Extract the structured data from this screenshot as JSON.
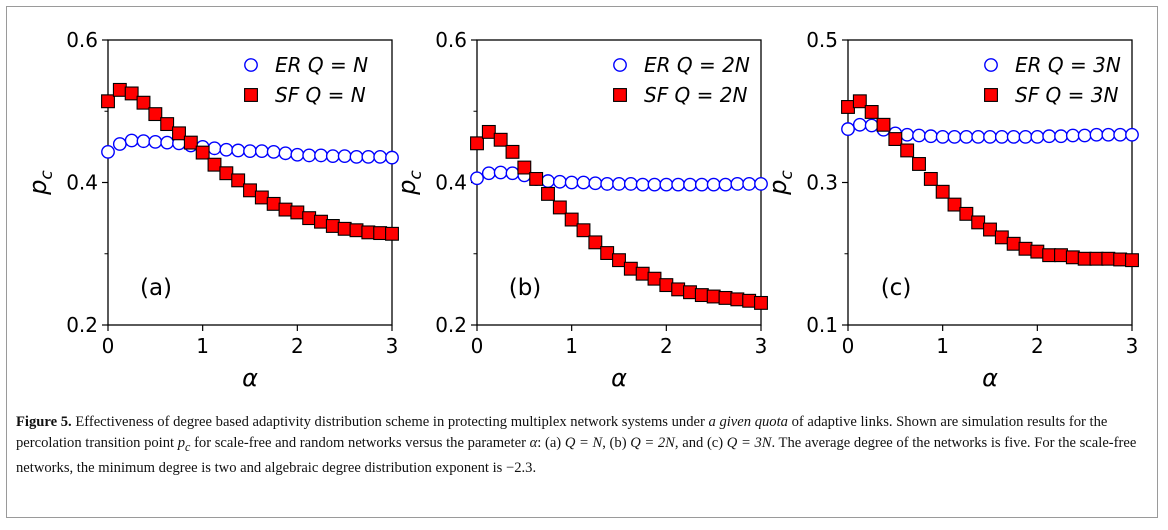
{
  "chart_data": [
    {
      "type": "scatter",
      "panel_label": "(a)",
      "xlabel": "α",
      "ylabel": "p_c",
      "xlim": [
        0,
        3
      ],
      "ylim": [
        0.2,
        0.6
      ],
      "xticks": [
        "0",
        "1",
        "2",
        "3"
      ],
      "yticks": [
        "0.2",
        "0.4",
        "0.6"
      ],
      "legend_position": "top-right",
      "x": [
        0,
        0.125,
        0.25,
        0.375,
        0.5,
        0.625,
        0.75,
        0.875,
        1.0,
        1.125,
        1.25,
        1.375,
        1.5,
        1.625,
        1.75,
        1.875,
        2.0,
        2.125,
        2.25,
        2.375,
        2.5,
        2.625,
        2.75,
        2.875,
        3.0
      ],
      "series": [
        {
          "name": "ER   Q = N",
          "marker": "circle",
          "color": "#0000ff",
          "values": [
            0.443,
            0.454,
            0.459,
            0.458,
            0.457,
            0.456,
            0.455,
            0.452,
            0.45,
            0.448,
            0.446,
            0.445,
            0.444,
            0.444,
            0.443,
            0.441,
            0.439,
            0.438,
            0.438,
            0.437,
            0.437,
            0.436,
            0.436,
            0.436,
            0.435
          ]
        },
        {
          "name": "SF   Q = N",
          "marker": "square",
          "color": "#ff0000",
          "values": [
            0.514,
            0.53,
            0.525,
            0.512,
            0.496,
            0.482,
            0.469,
            0.456,
            0.442,
            0.425,
            0.413,
            0.403,
            0.389,
            0.379,
            0.37,
            0.362,
            0.358,
            0.35,
            0.345,
            0.339,
            0.335,
            0.333,
            0.33,
            0.329,
            0.328
          ]
        }
      ]
    },
    {
      "type": "scatter",
      "panel_label": "(b)",
      "xlabel": "α",
      "ylabel": "p_c",
      "xlim": [
        0,
        3
      ],
      "ylim": [
        0.2,
        0.6
      ],
      "xticks": [
        "0",
        "1",
        "2",
        "3"
      ],
      "yticks": [
        "0.2",
        "0.4",
        "0.6"
      ],
      "legend_position": "top-right",
      "x": [
        0,
        0.125,
        0.25,
        0.375,
        0.5,
        0.625,
        0.75,
        0.875,
        1.0,
        1.125,
        1.25,
        1.375,
        1.5,
        1.625,
        1.75,
        1.875,
        2.0,
        2.125,
        2.25,
        2.375,
        2.5,
        2.625,
        2.75,
        2.875,
        3.0
      ],
      "series": [
        {
          "name": "ER   Q = 2N",
          "marker": "circle",
          "color": "#0000ff",
          "values": [
            0.406,
            0.413,
            0.414,
            0.413,
            0.41,
            0.405,
            0.402,
            0.401,
            0.4,
            0.4,
            0.399,
            0.398,
            0.398,
            0.398,
            0.397,
            0.397,
            0.397,
            0.397,
            0.397,
            0.397,
            0.397,
            0.397,
            0.398,
            0.398,
            0.398
          ]
        },
        {
          "name": "SF   Q = 2N",
          "marker": "square",
          "color": "#ff0000",
          "values": [
            0.455,
            0.471,
            0.46,
            0.443,
            0.421,
            0.405,
            0.384,
            0.365,
            0.348,
            0.333,
            0.316,
            0.301,
            0.291,
            0.279,
            0.272,
            0.265,
            0.256,
            0.25,
            0.246,
            0.242,
            0.24,
            0.238,
            0.236,
            0.234,
            0.231
          ]
        }
      ]
    },
    {
      "type": "scatter",
      "panel_label": "(c)",
      "xlabel": "α",
      "ylabel": "p_c",
      "xlim": [
        0,
        3
      ],
      "ylim": [
        0.1,
        0.5
      ],
      "xticks": [
        "0",
        "1",
        "2",
        "3"
      ],
      "yticks": [
        "0.1",
        "0.3",
        "0.5"
      ],
      "legend_position": "top-right",
      "x": [
        0,
        0.125,
        0.25,
        0.375,
        0.5,
        0.625,
        0.75,
        0.875,
        1.0,
        1.125,
        1.25,
        1.375,
        1.5,
        1.625,
        1.75,
        1.875,
        2.0,
        2.125,
        2.25,
        2.375,
        2.5,
        2.625,
        2.75,
        2.875,
        3.0
      ],
      "series": [
        {
          "name": "ER   Q = 3N",
          "marker": "circle",
          "color": "#0000ff",
          "values": [
            0.375,
            0.381,
            0.38,
            0.374,
            0.369,
            0.367,
            0.366,
            0.365,
            0.364,
            0.364,
            0.364,
            0.364,
            0.364,
            0.364,
            0.364,
            0.364,
            0.364,
            0.365,
            0.365,
            0.366,
            0.366,
            0.367,
            0.367,
            0.367,
            0.367
          ]
        },
        {
          "name": "SF   Q = 3N",
          "marker": "square",
          "color": "#ff0000",
          "values": [
            0.406,
            0.414,
            0.399,
            0.381,
            0.361,
            0.345,
            0.326,
            0.305,
            0.287,
            0.269,
            0.256,
            0.244,
            0.234,
            0.223,
            0.214,
            0.207,
            0.203,
            0.198,
            0.198,
            0.195,
            0.193,
            0.193,
            0.193,
            0.192,
            0.191
          ]
        }
      ]
    }
  ],
  "caption": {
    "figure_label": "Figure 5.",
    "text_1": " Effectiveness of degree based adaptivity distribution scheme in protecting multiplex network systems under ",
    "emphasis": "a given quota",
    "text_2": " of adaptive links. Shown are simulation results for the percolation transition point ",
    "symbol_p": "p",
    "symbol_c": "c",
    "text_3": " for scale-free and random networks versus the parameter ",
    "symbol_alpha": "α",
    "text_4": ": (a) ",
    "eq_a": "Q = N",
    "text_5": ", (b) ",
    "eq_b": "Q = 2N",
    "text_6": ", and (c) ",
    "eq_c": "Q = 3N",
    "text_7": ". The average degree of the networks is five. For the scale-free networks, the minimum degree is two and algebraic degree distribution exponent is −2.3."
  }
}
